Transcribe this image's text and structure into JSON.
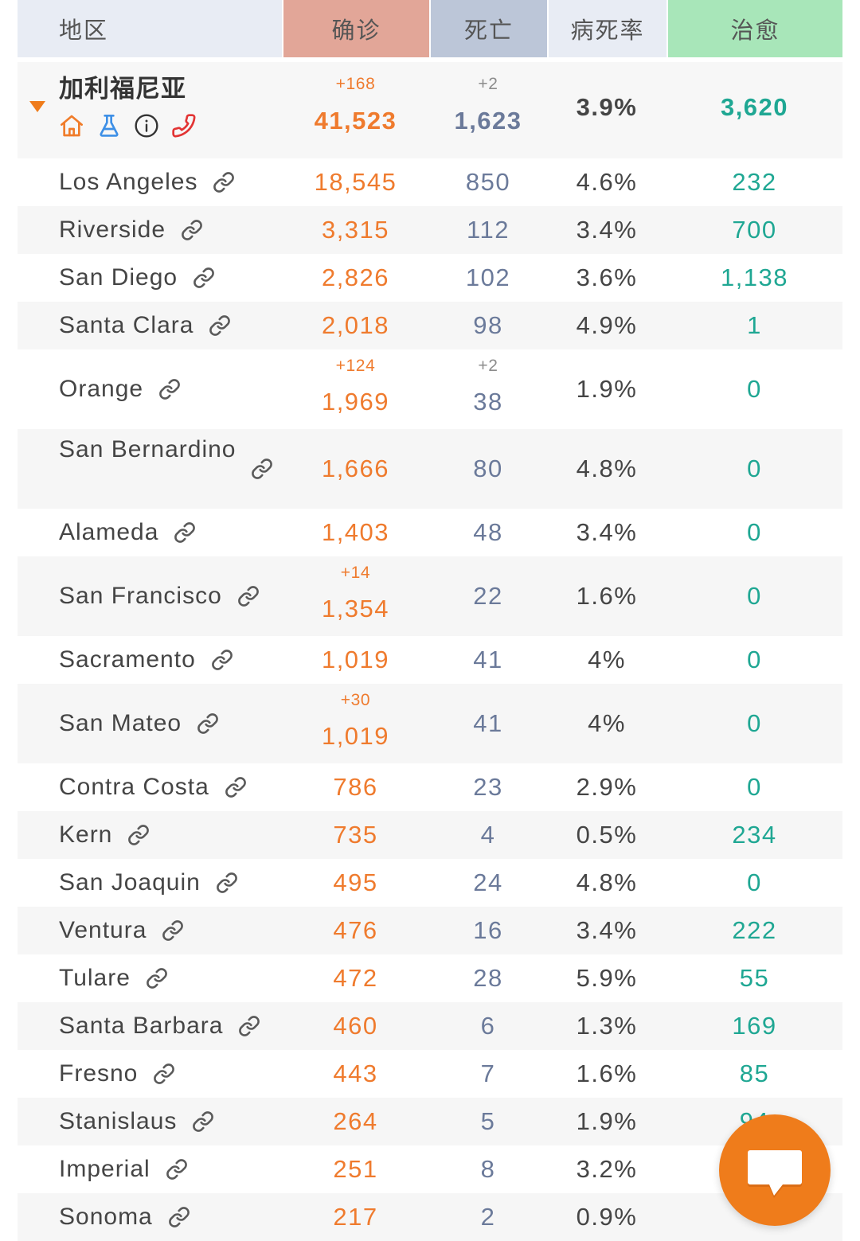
{
  "header": {
    "region": "地区",
    "confirmed": "确诊",
    "deaths": "死亡",
    "fatality_rate": "病死率",
    "recovered": "治愈"
  },
  "colors": {
    "header_region_bg": "#e8ecf4",
    "header_confirmed_bg": "#e2a698",
    "header_deaths_bg": "#bcc6d8",
    "header_rate_bg": "#e8ecf4",
    "header_recovered_bg": "#a8e6b9",
    "confirmed": "#ef7b2e",
    "deaths": "#6b7a9a",
    "recovered": "#1fa793",
    "accent": "#ef7c1b"
  },
  "state": {
    "name": "加利福尼亚",
    "expand_icon": "triangle-down-icon",
    "icons": [
      "home-icon",
      "flask-icon",
      "info-icon",
      "phone-icon"
    ],
    "confirmed_delta": "+168",
    "confirmed": "41,523",
    "deaths_delta": "+2",
    "deaths": "1,623",
    "fatality_rate": "3.9%",
    "recovered": "3,620"
  },
  "counties": [
    {
      "name": "Los Angeles",
      "confirmed": "18,545",
      "deaths": "850",
      "fatality_rate": "4.6%",
      "recovered": "232"
    },
    {
      "name": "Riverside",
      "confirmed": "3,315",
      "deaths": "112",
      "fatality_rate": "3.4%",
      "recovered": "700"
    },
    {
      "name": "San Diego",
      "confirmed": "2,826",
      "deaths": "102",
      "fatality_rate": "3.6%",
      "recovered": "1,138"
    },
    {
      "name": "Santa Clara",
      "confirmed": "2,018",
      "deaths": "98",
      "fatality_rate": "4.9%",
      "recovered": "1"
    },
    {
      "name": "Orange",
      "confirmed_delta": "+124",
      "confirmed": "1,969",
      "deaths_delta": "+2",
      "deaths": "38",
      "fatality_rate": "1.9%",
      "recovered": "0"
    },
    {
      "name": "San Bernardino",
      "confirmed": "1,666",
      "deaths": "80",
      "fatality_rate": "4.8%",
      "recovered": "0"
    },
    {
      "name": "Alameda",
      "confirmed": "1,403",
      "deaths": "48",
      "fatality_rate": "3.4%",
      "recovered": "0"
    },
    {
      "name": "San Francisco",
      "confirmed_delta": "+14",
      "confirmed": "1,354",
      "deaths": "22",
      "fatality_rate": "1.6%",
      "recovered": "0"
    },
    {
      "name": "Sacramento",
      "confirmed": "1,019",
      "deaths": "41",
      "fatality_rate": "4%",
      "recovered": "0"
    },
    {
      "name": "San Mateo",
      "confirmed_delta": "+30",
      "confirmed": "1,019",
      "deaths": "41",
      "fatality_rate": "4%",
      "recovered": "0"
    },
    {
      "name": "Contra Costa",
      "confirmed": "786",
      "deaths": "23",
      "fatality_rate": "2.9%",
      "recovered": "0"
    },
    {
      "name": "Kern",
      "confirmed": "735",
      "deaths": "4",
      "fatality_rate": "0.5%",
      "recovered": "234"
    },
    {
      "name": "San Joaquin",
      "confirmed": "495",
      "deaths": "24",
      "fatality_rate": "4.8%",
      "recovered": "0"
    },
    {
      "name": "Ventura",
      "confirmed": "476",
      "deaths": "16",
      "fatality_rate": "3.4%",
      "recovered": "222"
    },
    {
      "name": "Tulare",
      "confirmed": "472",
      "deaths": "28",
      "fatality_rate": "5.9%",
      "recovered": "55"
    },
    {
      "name": "Santa Barbara",
      "confirmed": "460",
      "deaths": "6",
      "fatality_rate": "1.3%",
      "recovered": "169"
    },
    {
      "name": "Fresno",
      "confirmed": "443",
      "deaths": "7",
      "fatality_rate": "1.6%",
      "recovered": "85"
    },
    {
      "name": "Stanislaus",
      "confirmed": "264",
      "deaths": "5",
      "fatality_rate": "1.9%",
      "recovered": "94"
    },
    {
      "name": "Imperial",
      "confirmed": "251",
      "deaths": "8",
      "fatality_rate": "3.2%"
    },
    {
      "name": "Sonoma",
      "confirmed": "217",
      "deaths": "2",
      "fatality_rate": "0.9%"
    }
  ],
  "row_icon": "link-icon",
  "chat_button": {
    "icon": "chat-bubble-icon"
  }
}
